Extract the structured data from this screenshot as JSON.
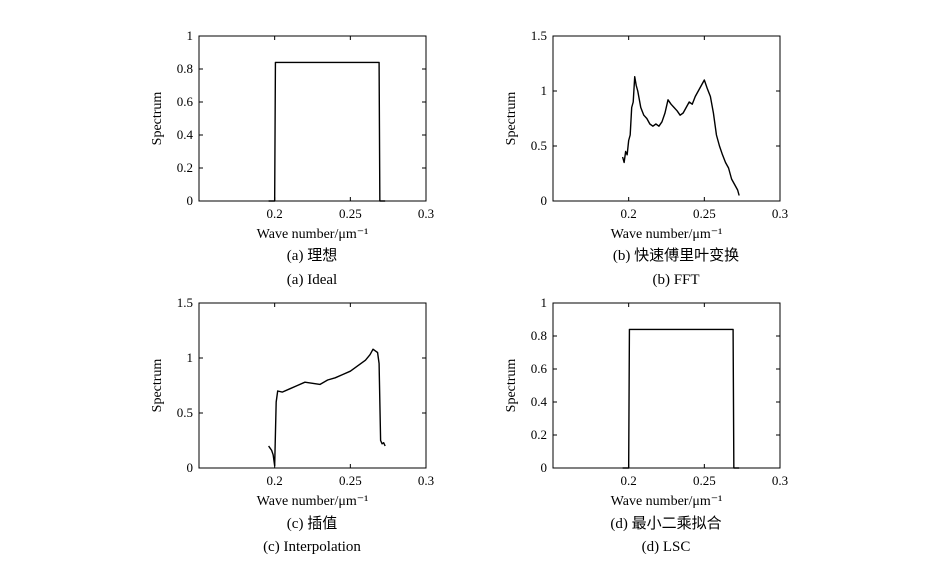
{
  "chart_data": [
    {
      "type": "line",
      "caption_cn": "(a) 理想",
      "caption_en": "(a) Ideal",
      "xlabel": "Wave number/μm⁻¹",
      "ylabel": "Spectrum",
      "xlim": [
        0.15,
        0.3
      ],
      "ylim": [
        0,
        1
      ],
      "xticks": [
        "0.2",
        "0.25",
        "0.3"
      ],
      "yticks": [
        "0",
        "0.2",
        "0.4",
        "0.6",
        "0.8",
        "1"
      ],
      "series": [
        {
          "x": [
            0.196,
            0.2,
            0.2005,
            0.269,
            0.2695,
            0.273
          ],
          "y": [
            0,
            0,
            0.84,
            0.84,
            0,
            0
          ]
        }
      ]
    },
    {
      "type": "line",
      "caption_cn": "(b) 快速傅里叶变换",
      "caption_en": "(b) FFT",
      "xlabel": "Wave number/μm⁻¹",
      "ylabel": "Spectrum",
      "xlim": [
        0.15,
        0.3
      ],
      "ylim": [
        0,
        1.5
      ],
      "xticks": [
        "0.2",
        "0.25",
        "0.3"
      ],
      "yticks": [
        "0",
        "0.5",
        "1",
        "1.5"
      ],
      "series": [
        {
          "x": [
            0.196,
            0.197,
            0.198,
            0.199,
            0.2,
            0.201,
            0.202,
            0.203,
            0.204,
            0.205,
            0.206,
            0.208,
            0.21,
            0.212,
            0.214,
            0.216,
            0.218,
            0.22,
            0.222,
            0.224,
            0.226,
            0.228,
            0.23,
            0.232,
            0.234,
            0.236,
            0.238,
            0.24,
            0.242,
            0.244,
            0.246,
            0.248,
            0.25,
            0.252,
            0.254,
            0.256,
            0.258,
            0.26,
            0.262,
            0.264,
            0.266,
            0.268,
            0.27,
            0.272,
            0.273
          ],
          "y": [
            0.4,
            0.35,
            0.45,
            0.42,
            0.55,
            0.6,
            0.85,
            0.9,
            1.13,
            1.05,
            1.0,
            0.85,
            0.78,
            0.75,
            0.7,
            0.68,
            0.7,
            0.68,
            0.72,
            0.8,
            0.92,
            0.88,
            0.85,
            0.82,
            0.78,
            0.8,
            0.85,
            0.9,
            0.88,
            0.95,
            1.0,
            1.05,
            1.1,
            1.02,
            0.95,
            0.8,
            0.6,
            0.5,
            0.42,
            0.35,
            0.3,
            0.2,
            0.15,
            0.1,
            0.05
          ]
        }
      ]
    },
    {
      "type": "line",
      "caption_cn": "(c) 插值",
      "caption_en": "(c) Interpolation",
      "xlabel": "Wave number/μm⁻¹",
      "ylabel": "Spectrum",
      "xlim": [
        0.15,
        0.3
      ],
      "ylim": [
        0,
        1.5
      ],
      "xticks": [
        "0.2",
        "0.25",
        "0.3"
      ],
      "yticks": [
        "0",
        "0.5",
        "1",
        "1.5"
      ],
      "series": [
        {
          "x": [
            0.196,
            0.197,
            0.198,
            0.199,
            0.2,
            0.201,
            0.202,
            0.205,
            0.21,
            0.215,
            0.22,
            0.225,
            0.23,
            0.235,
            0.24,
            0.245,
            0.25,
            0.255,
            0.26,
            0.263,
            0.265,
            0.267,
            0.268,
            0.269,
            0.27,
            0.271,
            0.272,
            0.273
          ],
          "y": [
            0.2,
            0.18,
            0.16,
            0.12,
            0.02,
            0.6,
            0.7,
            0.69,
            0.72,
            0.75,
            0.78,
            0.77,
            0.76,
            0.8,
            0.82,
            0.85,
            0.88,
            0.93,
            0.98,
            1.03,
            1.08,
            1.06,
            1.05,
            0.95,
            0.25,
            0.22,
            0.23,
            0.2
          ]
        }
      ]
    },
    {
      "type": "line",
      "caption_cn": "(d) 最小二乘拟合",
      "caption_en": "(d) LSC",
      "xlabel": "Wave number/μm⁻¹",
      "ylabel": "Spectrum",
      "xlim": [
        0.15,
        0.3
      ],
      "ylim": [
        0,
        1
      ],
      "xticks": [
        "0.2",
        "0.25",
        "0.3"
      ],
      "yticks": [
        "0",
        "0.2",
        "0.4",
        "0.6",
        "0.8",
        "1"
      ],
      "series": [
        {
          "x": [
            0.196,
            0.2,
            0.2005,
            0.269,
            0.2695,
            0.273
          ],
          "y": [
            0,
            0,
            0.84,
            0.84,
            0,
            0
          ]
        }
      ]
    }
  ]
}
